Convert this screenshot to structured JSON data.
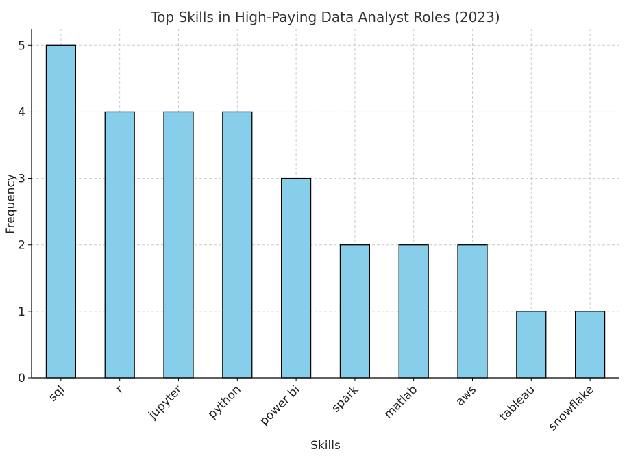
{
  "chart_data": {
    "type": "bar",
    "title": "Top Skills in High-Paying Data Analyst Roles (2023)",
    "xlabel": "Skills",
    "ylabel": "Frequency",
    "categories": [
      "sql",
      "r",
      "jupyter",
      "python",
      "power bi",
      "spark",
      "matlab",
      "aws",
      "tableau",
      "snowflake"
    ],
    "values": [
      5,
      4,
      4,
      4,
      3,
      2,
      2,
      2,
      1,
      1
    ],
    "ylim": [
      0,
      5.25
    ],
    "yticks": [
      0,
      1,
      2,
      3,
      4,
      5
    ],
    "bar_color": "#87ceeb",
    "edge_color": "#000000",
    "grid": true,
    "tick_label_rotation": "45"
  }
}
